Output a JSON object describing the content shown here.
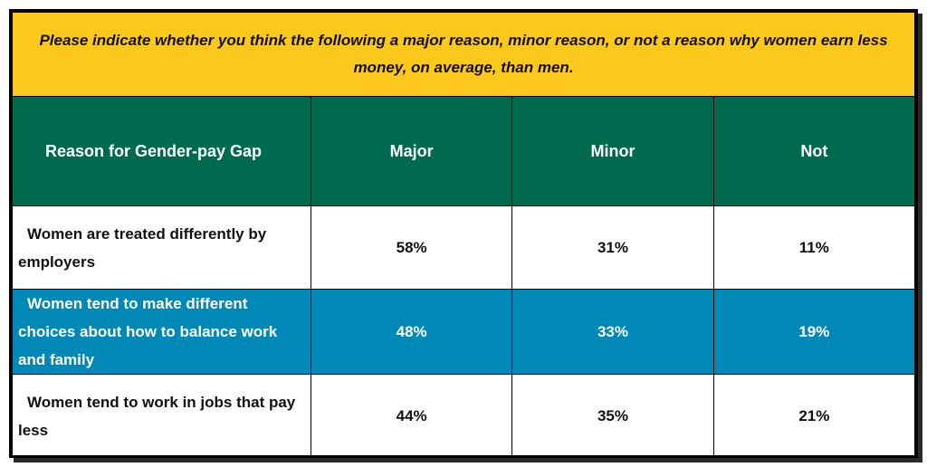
{
  "chart_data": {
    "type": "table",
    "title": "Please indicate whether you think the following a major reason, minor reason, or not a reason why women earn less money, on average, than men.",
    "columns": [
      "Reason for Gender-pay Gap",
      "Major",
      "Minor",
      "Not"
    ],
    "rows": [
      {
        "label": "Women are treated differently by employers",
        "values": [
          "58%",
          "31%",
          "11%"
        ]
      },
      {
        "label": "Women tend to make different choices about how to balance work and family",
        "values": [
          "48%",
          "33%",
          "19%"
        ]
      },
      {
        "label": "Women tend to work in jobs that pay less",
        "values": [
          "44%",
          "35%",
          "21%"
        ]
      }
    ]
  },
  "colors": {
    "title_background": "#fcc81c",
    "header_background": "#006a4e",
    "highlight_row_background": "#0088b6",
    "row_background": "#ffffff",
    "highlight_row_text": "#ffffff",
    "row_text": "#111111"
  }
}
